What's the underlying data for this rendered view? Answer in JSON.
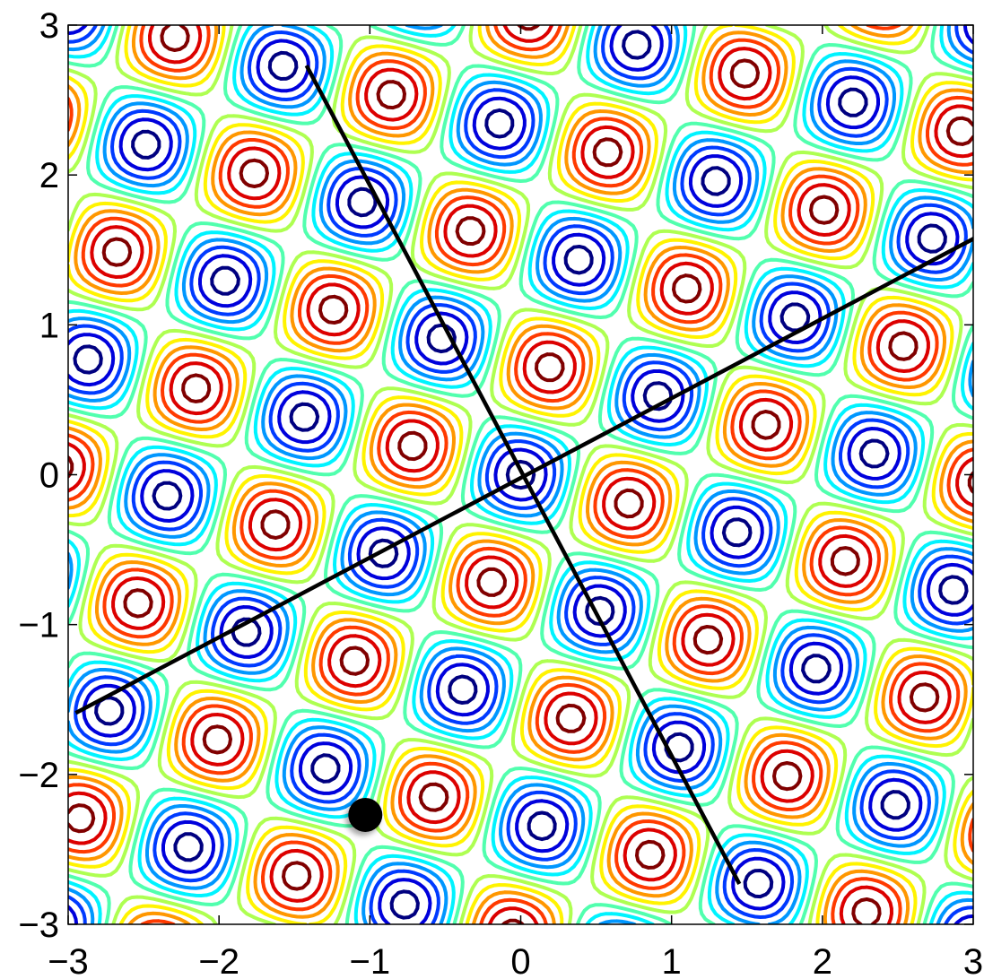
{
  "chart_data": {
    "type": "contour",
    "title": "",
    "xlabel": "",
    "ylabel": "",
    "xlim": [
      -3,
      3
    ],
    "ylim": [
      -3,
      3
    ],
    "grid": false,
    "colormap": "jet",
    "x_ticks": [
      -3,
      -2,
      -1,
      0,
      1,
      2,
      3
    ],
    "y_ticks": [
      -3,
      -2,
      -1,
      0,
      1,
      2,
      3
    ],
    "x_tick_labels": [
      "−3",
      "−2",
      "−1",
      "0",
      "1",
      "2",
      "3"
    ],
    "y_tick_labels": [
      "−3",
      "−2",
      "−1",
      "0",
      "1",
      "2",
      "3"
    ],
    "field": {
      "grid_rotation_deg": 30,
      "lattice_spacing": 1.05,
      "low_value_color": "#0000b0",
      "high_value_color": "#800000"
    },
    "lines": [
      {
        "name": "",
        "color": "#000000",
        "points": [
          [
            -1.42,
            2.73
          ],
          [
            1.45,
            -2.73
          ]
        ]
      },
      {
        "name": "",
        "color": "#000000",
        "points": [
          [
            -2.95,
            -1.59
          ],
          [
            3.05,
            1.6
          ]
        ]
      }
    ],
    "points": [
      {
        "name": "",
        "x": -1.03,
        "y": -2.27,
        "color": "#000000"
      }
    ]
  }
}
